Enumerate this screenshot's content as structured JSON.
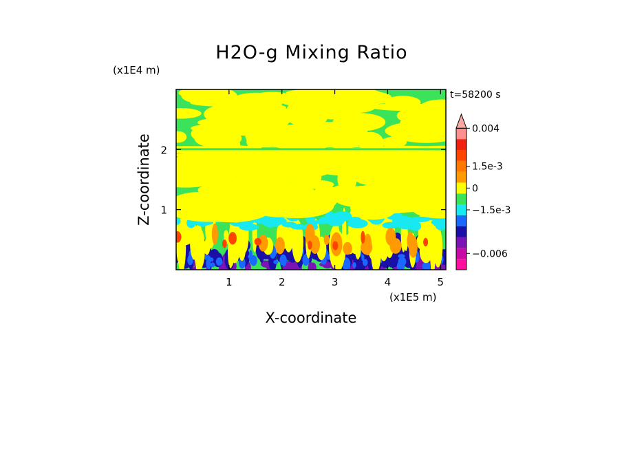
{
  "chart_data": {
    "type": "heatmap",
    "title": "H2O-g Mixing Ratio",
    "xlabel": "X-coordinate",
    "ylabel": "Z-coordinate",
    "x_scale_label": "(x1E5 m)",
    "y_scale_label": "(x1E4 m)",
    "time_label": "t=58200 s",
    "x_ticks": [
      "1",
      "2",
      "3",
      "4",
      "5"
    ],
    "y_ticks": [
      "1",
      "2"
    ],
    "xlim": [
      0.0,
      5.1
    ],
    "ylim": [
      0.0,
      3.0
    ],
    "colorbar": {
      "levels": [
        {
          "color": "#ff0fa0"
        },
        {
          "color": "#c80aa6"
        },
        {
          "color": "#7b14b4"
        },
        {
          "color": "#1a10a8"
        },
        {
          "color": "#1a68ff"
        },
        {
          "color": "#18e8ef"
        },
        {
          "color": "#3ae35a"
        },
        {
          "color": "#ffff00"
        },
        {
          "color": "#ff9a00"
        },
        {
          "color": "#ff7800"
        },
        {
          "color": "#ff4400"
        },
        {
          "color": "#f01f10"
        },
        {
          "color": "#ff8f8c"
        },
        {
          "color": "#f9a9a0"
        }
      ],
      "labels": [
        {
          "text": "0.004",
          "level": 13
        },
        {
          "text": "1.5e-3",
          "level": 9.5
        },
        {
          "text": "0",
          "level": 7.5
        },
        {
          "text": "−1.5e-3",
          "level": 5.5
        },
        {
          "text": "−0.006",
          "level": 1.5
        }
      ]
    }
  }
}
